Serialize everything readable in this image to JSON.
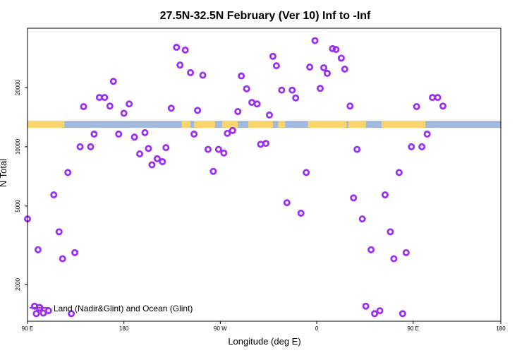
{
  "chart_data": {
    "type": "scatter",
    "title": "27.5N-32.5N February (Ver 10)   Inf to -Inf",
    "xlabel": "Longitude (deg E)",
    "ylabel": "N Total",
    "xlim": [
      -90,
      180
    ],
    "y_scale": "log",
    "ylim": [
      1300,
      40000
    ],
    "grid": false,
    "x_ticks": [
      {
        "value": -90,
        "label": "90 E"
      },
      {
        "value": -35,
        "label": "180"
      },
      {
        "value": 20,
        "label": "90 W"
      },
      {
        "value": 75,
        "label": "0"
      },
      {
        "value": 130,
        "label": "90 E"
      },
      {
        "value": 180,
        "label": "180"
      }
    ],
    "y_ticks": [
      {
        "value": 2000,
        "label": "2000"
      },
      {
        "value": 5000,
        "label": "5000"
      },
      {
        "value": 10000,
        "label": "10000"
      },
      {
        "value": 20000,
        "label": "20000"
      }
    ],
    "surface_strip": {
      "y_value": 13000,
      "colors": {
        "land": "#f9d56e",
        "ocean": "#a2bade"
      },
      "land_segments": [
        [
          -90,
          -70
        ],
        [
          -70,
          -69
        ],
        [
          -2,
          3
        ],
        [
          5,
          17
        ],
        [
          21,
          30
        ],
        [
          36,
          50
        ],
        [
          53,
          57
        ],
        [
          70,
          92
        ],
        [
          93,
          103
        ],
        [
          112,
          137
        ]
      ]
    },
    "series": [
      {
        "name": "Land (Nadir&Glint) and Ocean (Glint)",
        "color": "#9b30f0",
        "marker": "open-circle",
        "points": [
          [
            -90,
            4300
          ],
          [
            -86,
            1550
          ],
          [
            -85,
            1420
          ],
          [
            -84,
            3000
          ],
          [
            -81,
            1430
          ],
          [
            -78,
            1470
          ],
          [
            -75,
            5700
          ],
          [
            -72,
            3700
          ],
          [
            -70,
            2700
          ],
          [
            -67,
            7400
          ],
          [
            -65,
            1420
          ],
          [
            -63,
            2900
          ],
          [
            -60,
            10000
          ],
          [
            -58,
            16000
          ],
          [
            -54,
            10000
          ],
          [
            -52,
            11600
          ],
          [
            -49,
            17800
          ],
          [
            -46,
            17800
          ],
          [
            -43,
            16100
          ],
          [
            -41,
            21500
          ],
          [
            -38,
            11600
          ],
          [
            -35,
            14800
          ],
          [
            -32,
            16500
          ],
          [
            -29,
            11200
          ],
          [
            -26,
            9200
          ],
          [
            -23,
            11800
          ],
          [
            -21,
            9800
          ],
          [
            -19,
            8100
          ],
          [
            -16,
            8700
          ],
          [
            -13,
            8400
          ],
          [
            -11,
            9900
          ],
          [
            -8,
            15700
          ],
          [
            -5,
            32000
          ],
          [
            -3,
            26000
          ],
          [
            0,
            31000
          ],
          [
            3,
            23800
          ],
          [
            5,
            11600
          ],
          [
            7,
            15300
          ],
          [
            10,
            23100
          ],
          [
            13,
            9700
          ],
          [
            16,
            7500
          ],
          [
            19,
            9700
          ],
          [
            22,
            9300
          ],
          [
            24,
            11700
          ],
          [
            27,
            12100
          ],
          [
            30,
            15100
          ],
          [
            32,
            22900
          ],
          [
            35,
            19700
          ],
          [
            38,
            16800
          ],
          [
            41,
            16500
          ],
          [
            43,
            10300
          ],
          [
            46,
            10400
          ],
          [
            48,
            14500
          ],
          [
            50,
            28800
          ],
          [
            52,
            25800
          ],
          [
            55,
            19400
          ],
          [
            58,
            5200
          ],
          [
            61,
            19400
          ],
          [
            63,
            17700
          ],
          [
            66,
            4600
          ],
          [
            69,
            7400
          ],
          [
            71,
            25400
          ],
          [
            74,
            34600
          ],
          [
            77,
            19800
          ],
          [
            79,
            25200
          ],
          [
            81,
            23600
          ],
          [
            84,
            31500
          ],
          [
            86,
            31200
          ],
          [
            89,
            28200
          ],
          [
            91,
            24800
          ],
          [
            94,
            16100
          ],
          [
            96,
            5500
          ],
          [
            98,
            9700
          ],
          [
            101,
            4300
          ],
          [
            103,
            1550
          ],
          [
            106,
            3000
          ],
          [
            108,
            1420
          ],
          [
            111,
            1470
          ],
          [
            114,
            5700
          ],
          [
            117,
            3700
          ],
          [
            119,
            2700
          ],
          [
            122,
            7400
          ],
          [
            124,
            1420
          ],
          [
            126,
            2900
          ],
          [
            129,
            10000
          ],
          [
            132,
            16000
          ],
          [
            135,
            10000
          ],
          [
            138,
            11600
          ],
          [
            141,
            17800
          ],
          [
            144,
            17800
          ],
          [
            147,
            16100
          ]
        ]
      }
    ],
    "legend": {
      "position": "bottom-left"
    }
  }
}
